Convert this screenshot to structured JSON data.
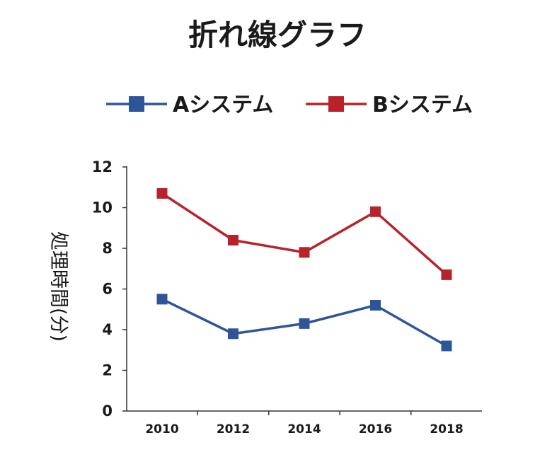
{
  "chart_data": {
    "type": "line",
    "title": "折れ線グラフ",
    "xlabel": "",
    "ylabel": "処理時間(分)",
    "categories": [
      "2010",
      "2012",
      "2014",
      "2016",
      "2018"
    ],
    "y_ticks": [
      "0",
      "2",
      "4",
      "6",
      "8",
      "10",
      "12"
    ],
    "ylim": [
      0,
      12
    ],
    "grid": false,
    "legend_position": "top",
    "series": [
      {
        "name": "Aシステム",
        "color": "#2E5597",
        "marker": "square",
        "values": [
          5.5,
          3.8,
          4.3,
          5.2,
          3.2
        ]
      },
      {
        "name": "Bシステム",
        "color": "#B8222A",
        "marker": "square",
        "values": [
          10.7,
          8.4,
          7.8,
          9.8,
          6.7
        ]
      }
    ]
  }
}
